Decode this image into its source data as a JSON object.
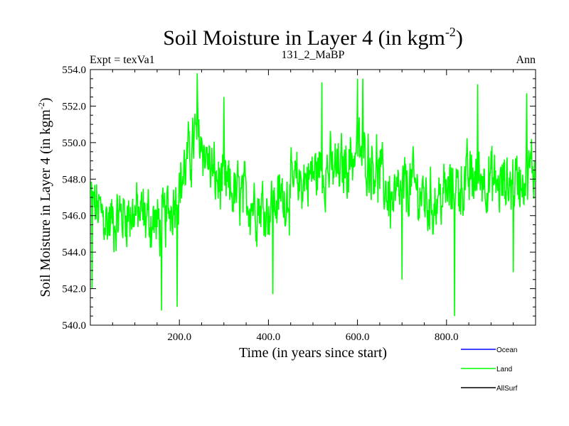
{
  "chart_data": {
    "type": "line",
    "title": "Soil Moisture in Layer 4 (in kgm",
    "title_sup": "-2",
    "title_close": ")",
    "subtitle_left": "Expt = texVa1",
    "subtitle_center": "131_2_MaBP",
    "subtitle_right": "Ann",
    "xlabel": "Time (in years since start)",
    "ylabel": "Soil Moisture in Layer 4 (in kgm",
    "ylabel_sup": "-2",
    "ylabel_close": ")",
    "xlim": [
      0,
      1000
    ],
    "ylim": [
      540,
      554
    ],
    "xticks": [
      200,
      400,
      600,
      800
    ],
    "xtick_labels": [
      "200.0",
      "400.0",
      "600.0",
      "800.0"
    ],
    "yticks": [
      540,
      542,
      544,
      546,
      548,
      550,
      552,
      554
    ],
    "ytick_labels": [
      "540.0",
      "542.0",
      "544.0",
      "546.0",
      "548.0",
      "550.0",
      "552.0",
      "554.0"
    ],
    "series": [
      {
        "name": "Ocean",
        "color": "#0000ff",
        "values": []
      },
      {
        "name": "Land",
        "color": "#00ff00",
        "sampling": "annual, years 1-1000",
        "trend_x": [
          0,
          40,
          80,
          120,
          160,
          200,
          240,
          280,
          320,
          360,
          400,
          440,
          480,
          520,
          560,
          600,
          640,
          680,
          720,
          760,
          800,
          840,
          880,
          920,
          960,
          1000
        ],
        "trend_y": [
          546.8,
          545.6,
          546.2,
          546.0,
          545.4,
          547.6,
          550.6,
          548.0,
          547.2,
          546.8,
          546.4,
          547.2,
          548.0,
          548.6,
          548.4,
          549.6,
          548.8,
          546.6,
          547.8,
          546.6,
          547.2,
          547.8,
          548.2,
          547.6,
          548.0,
          548.6
        ],
        "peaks_x": [
          4,
          160,
          195,
          240,
          300,
          410,
          520,
          600,
          612,
          700,
          818,
          870,
          950,
          980
        ],
        "peaks_y": [
          542.0,
          540.8,
          541.0,
          553.8,
          552.5,
          541.7,
          553.3,
          553.5,
          553.5,
          542.5,
          540.5,
          553.2,
          542.9,
          552.7
        ]
      },
      {
        "name": "AllSurf",
        "color": "#000000",
        "values": []
      }
    ]
  }
}
